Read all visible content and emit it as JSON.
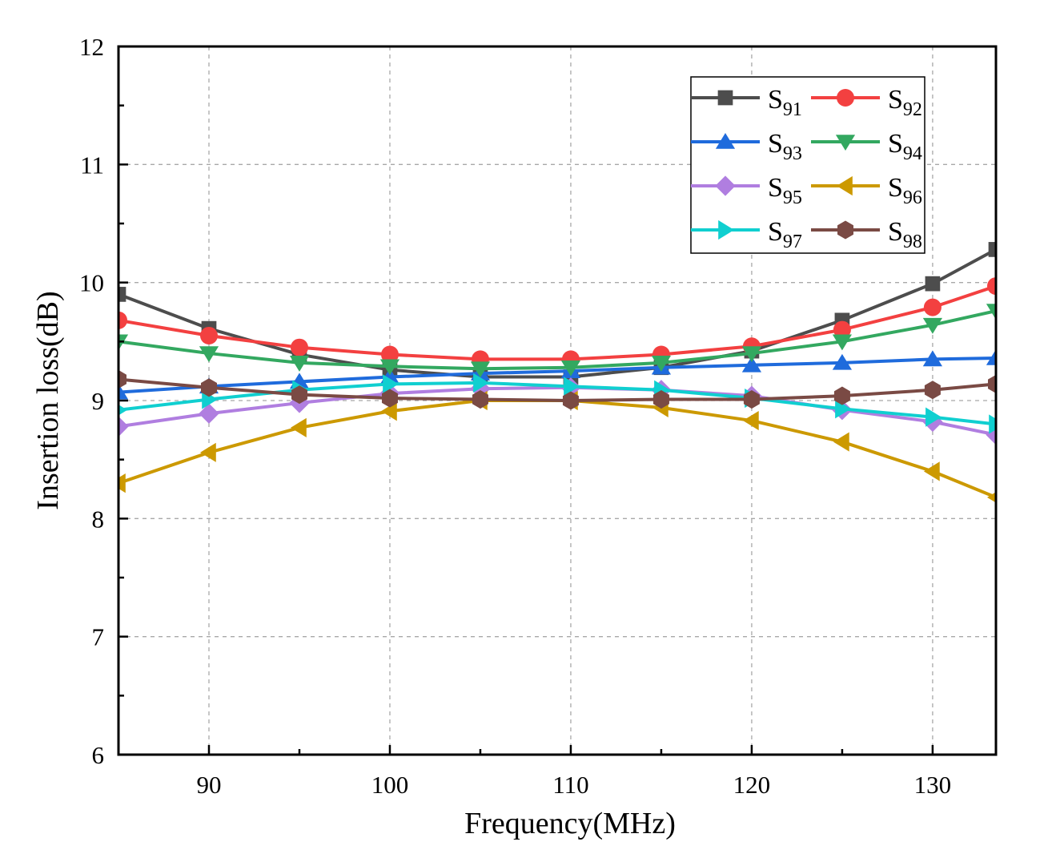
{
  "chart_data": {
    "type": "line",
    "title": "",
    "xlabel": "Frequency(MHz)",
    "ylabel": "Insertion loss(dB)",
    "xlim": [
      85,
      133.5
    ],
    "ylim": [
      6,
      12
    ],
    "xticks": [
      90,
      100,
      110,
      120,
      130
    ],
    "xminor": [
      95,
      105,
      115,
      125
    ],
    "yticks": [
      6,
      7,
      8,
      9,
      10,
      11,
      12
    ],
    "grid": true,
    "legend_position": "top-right",
    "x": [
      85,
      90,
      95,
      100,
      105,
      110,
      115,
      120,
      125,
      130,
      133.5
    ],
    "series": [
      {
        "name": "S",
        "sub": "91",
        "color": "#4d4d4d",
        "marker": "square",
        "values": [
          9.9,
          9.61,
          9.39,
          9.26,
          9.2,
          9.2,
          9.28,
          9.42,
          9.68,
          9.99,
          10.28
        ]
      },
      {
        "name": "S",
        "sub": "92",
        "color": "#f34040",
        "marker": "circle",
        "values": [
          9.68,
          9.55,
          9.45,
          9.39,
          9.35,
          9.35,
          9.39,
          9.46,
          9.6,
          9.79,
          9.97
        ]
      },
      {
        "name": "S",
        "sub": "93",
        "color": "#1f6bdc",
        "marker": "triangle-up",
        "values": [
          9.07,
          9.12,
          9.16,
          9.2,
          9.23,
          9.25,
          9.28,
          9.3,
          9.32,
          9.35,
          9.36
        ]
      },
      {
        "name": "S",
        "sub": "94",
        "color": "#33a860",
        "marker": "triangle-down",
        "values": [
          9.5,
          9.4,
          9.32,
          9.29,
          9.27,
          9.28,
          9.32,
          9.4,
          9.5,
          9.64,
          9.76
        ]
      },
      {
        "name": "S",
        "sub": "95",
        "color": "#b07ee0",
        "marker": "diamond",
        "values": [
          8.78,
          8.89,
          8.98,
          9.06,
          9.1,
          9.11,
          9.09,
          9.04,
          8.92,
          8.82,
          8.71
        ]
      },
      {
        "name": "S",
        "sub": "96",
        "color": "#cc9900",
        "marker": "triangle-left",
        "values": [
          8.3,
          8.56,
          8.77,
          8.91,
          9.0,
          9.0,
          8.94,
          8.83,
          8.65,
          8.4,
          8.18
        ]
      },
      {
        "name": "S",
        "sub": "97",
        "color": "#10cfd0",
        "marker": "triangle-right",
        "values": [
          8.92,
          9.01,
          9.09,
          9.14,
          9.15,
          9.12,
          9.09,
          9.02,
          8.93,
          8.86,
          8.8
        ]
      },
      {
        "name": "S",
        "sub": "98",
        "color": "#7a4a44",
        "marker": "hexagon",
        "values": [
          9.18,
          9.11,
          9.05,
          9.02,
          9.01,
          9.0,
          9.01,
          9.01,
          9.04,
          9.09,
          9.14
        ]
      }
    ]
  }
}
